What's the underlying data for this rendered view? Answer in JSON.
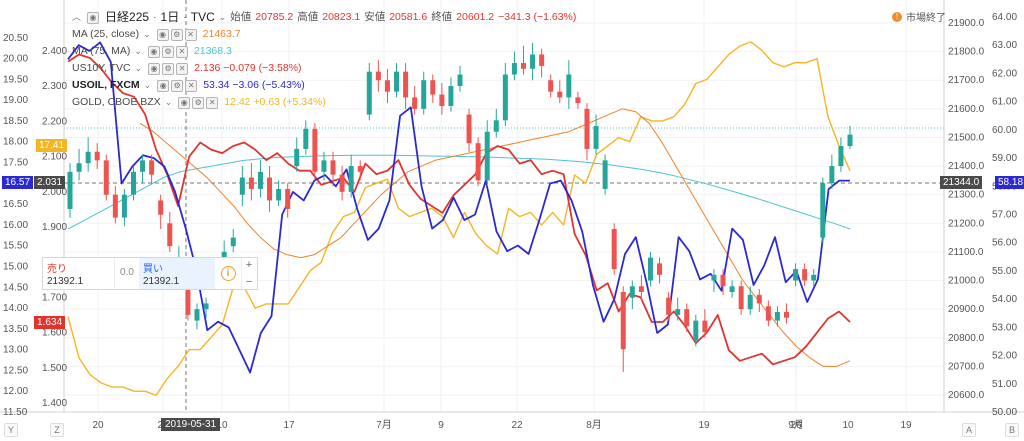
{
  "symbol": {
    "name": "日経225",
    "interval": "1日",
    "source": "TVC",
    "labels": {
      "open": "始値",
      "high": "高値",
      "low": "安値",
      "close": "終値"
    },
    "open": "20785.2",
    "high": "20823.1",
    "low": "20581.6",
    "close": "20601.2",
    "change": "−341.3 (−1.63%)"
  },
  "studies": [
    {
      "name": "MA (25, close)",
      "value": "21463.7",
      "color": "#f0822a"
    },
    {
      "name": "MA (75, MA)",
      "value": "21368.3",
      "color": "#4ec3d4"
    },
    {
      "name": "US10Y, TVC",
      "value": "2.136  −0.079 (−3.58%)",
      "color": "#e0342e"
    },
    {
      "name": "USOIL, FXCM",
      "value": "53.34  −3.06 (−5.43%)",
      "color": "#2a2ad0"
    },
    {
      "name": "GOLD, CBOE BZX",
      "value": "12.42  +0.63 (+5.34%)",
      "color": "#f4b522"
    }
  ],
  "market_status": "市場終了",
  "trade": {
    "sell_label": "売り",
    "sell_price": "21392.1",
    "spread": "0.0",
    "buy_label": "買い",
    "buy_price": "21392.1",
    "plus": "+",
    "minus": "−",
    "info": "i"
  },
  "left_axis_outer": [
    "20.50",
    "20.00",
    "19.50",
    "19.00",
    "18.50",
    "18.00",
    "17.50",
    "17.00",
    "16.50",
    "16.00",
    "15.50",
    "15.00",
    "14.50",
    "14.00",
    "13.50",
    "13.00",
    "12.50",
    "12.00",
    "11.50"
  ],
  "left_axis_inner": [
    "2.400",
    "2.300",
    "2.200",
    "2.100",
    "2.000",
    "1.900",
    "1.800",
    "1.700",
    "1.600",
    "1.500",
    "1.400"
  ],
  "right_axis_price": [
    "21900.0",
    "21800.0",
    "21700.0",
    "21600.0",
    "21500.0",
    "21400.0",
    "21300.0",
    "21200.0",
    "21100.0",
    "21000.0",
    "20900.0",
    "20800.0",
    "20700.0",
    "20600.0"
  ],
  "right_axis_outer": [
    "64.00",
    "63.00",
    "62.00",
    "61.00",
    "60.00",
    "59.00",
    "58.00",
    "57.00",
    "56.00",
    "55.00",
    "54.00",
    "53.00",
    "52.00",
    "51.00",
    "50.00"
  ],
  "x_axis": [
    "20",
    "27",
    "2019-05-31",
    "10",
    "17",
    "7月",
    "9",
    "22",
    "8月",
    "19",
    "26",
    "9月",
    "10",
    "19"
  ],
  "price_tags": {
    "gold_left": "17.41",
    "oil_left": "16.57",
    "us10y_left_inner": "2.031",
    "us10y_left": "1.634",
    "price_right": "21344.0",
    "oil_right": "58.18"
  },
  "corner_labels": {
    "y": "Y",
    "z": "Z",
    "a": "A",
    "b": "B"
  },
  "chart_data": {
    "type": "line",
    "candles": [
      {
        "o": 21250,
        "c": 21380,
        "h": 21410,
        "l": 21220
      },
      {
        "o": 21380,
        "c": 21410,
        "h": 21460,
        "l": 21350
      },
      {
        "o": 21410,
        "c": 21450,
        "h": 21500,
        "l": 21380
      },
      {
        "o": 21450,
        "c": 21420,
        "h": 21480,
        "l": 21390
      },
      {
        "o": 21420,
        "c": 21300,
        "h": 21440,
        "l": 21280
      },
      {
        "o": 21300,
        "c": 21220,
        "h": 21330,
        "l": 21200
      },
      {
        "o": 21220,
        "c": 21300,
        "h": 21320,
        "l": 21190
      },
      {
        "o": 21300,
        "c": 21380,
        "h": 21400,
        "l": 21280
      },
      {
        "o": 21380,
        "c": 21420,
        "h": 21440,
        "l": 21340
      },
      {
        "o": 21420,
        "c": 21370,
        "h": 21440,
        "l": 21340
      },
      {
        "o": 21280,
        "c": 21230,
        "h": 21300,
        "l": 21180
      },
      {
        "o": 21200,
        "c": 21120,
        "h": 21240,
        "l": 21100
      },
      {
        "o": 21060,
        "c": 21080,
        "h": 21120,
        "l": 21000
      },
      {
        "o": 20990,
        "c": 20880,
        "h": 21010,
        "l": 20860
      },
      {
        "o": 20860,
        "c": 20900,
        "h": 20920,
        "l": 20830
      },
      {
        "o": 20900,
        "c": 20920,
        "h": 20940,
        "l": 20870
      },
      {
        "o": 21040,
        "c": 21060,
        "h": 21080,
        "l": 21020
      },
      {
        "o": 21040,
        "c": 21100,
        "h": 21140,
        "l": 21020
      },
      {
        "o": 21120,
        "c": 21150,
        "h": 21180,
        "l": 21100
      },
      {
        "o": 21300,
        "c": 21360,
        "h": 21400,
        "l": 21260
      },
      {
        "o": 21360,
        "c": 21320,
        "h": 21410,
        "l": 21280
      },
      {
        "o": 21320,
        "c": 21380,
        "h": 21420,
        "l": 21290
      },
      {
        "o": 21360,
        "c": 21280,
        "h": 21400,
        "l": 21240
      },
      {
        "o": 21280,
        "c": 21320,
        "h": 21350,
        "l": 21260
      },
      {
        "o": 21320,
        "c": 21250,
        "h": 21340,
        "l": 21220
      },
      {
        "o": 21400,
        "c": 21460,
        "h": 21500,
        "l": 21380
      },
      {
        "o": 21460,
        "c": 21530,
        "h": 21560,
        "l": 21440
      },
      {
        "o": 21530,
        "c": 21380,
        "h": 21550,
        "l": 21350
      },
      {
        "o": 21380,
        "c": 21420,
        "h": 21450,
        "l": 21350
      },
      {
        "o": 21420,
        "c": 21370,
        "h": 21450,
        "l": 21330
      },
      {
        "o": 21370,
        "c": 21310,
        "h": 21400,
        "l": 21280
      },
      {
        "o": 21310,
        "c": 21400,
        "h": 21440,
        "l": 21290
      },
      {
        "o": 21400,
        "c": 21380,
        "h": 21420,
        "l": 21350
      },
      {
        "o": 21580,
        "c": 21730,
        "h": 21760,
        "l": 21560
      },
      {
        "o": 21730,
        "c": 21700,
        "h": 21770,
        "l": 21660
      },
      {
        "o": 21700,
        "c": 21660,
        "h": 21740,
        "l": 21620
      },
      {
        "o": 21660,
        "c": 21730,
        "h": 21760,
        "l": 21640
      },
      {
        "o": 21730,
        "c": 21640,
        "h": 21760,
        "l": 21600
      },
      {
        "o": 21640,
        "c": 21600,
        "h": 21680,
        "l": 21580
      },
      {
        "o": 21600,
        "c": 21700,
        "h": 21730,
        "l": 21580
      },
      {
        "o": 21700,
        "c": 21650,
        "h": 21720,
        "l": 21620
      },
      {
        "o": 21650,
        "c": 21610,
        "h": 21690,
        "l": 21580
      },
      {
        "o": 21610,
        "c": 21680,
        "h": 21710,
        "l": 21590
      },
      {
        "o": 21680,
        "c": 21720,
        "h": 21750,
        "l": 21660
      },
      {
        "o": 21580,
        "c": 21480,
        "h": 21600,
        "l": 21450
      },
      {
        "o": 21480,
        "c": 21350,
        "h": 21500,
        "l": 21330
      },
      {
        "o": 21350,
        "c": 21520,
        "h": 21560,
        "l": 21330
      },
      {
        "o": 21520,
        "c": 21560,
        "h": 21600,
        "l": 21500
      },
      {
        "o": 21560,
        "c": 21720,
        "h": 21760,
        "l": 21540
      },
      {
        "o": 21720,
        "c": 21760,
        "h": 21800,
        "l": 21700
      },
      {
        "o": 21760,
        "c": 21740,
        "h": 21820,
        "l": 21720
      },
      {
        "o": 21740,
        "c": 21790,
        "h": 21830,
        "l": 21700
      },
      {
        "o": 21790,
        "c": 21750,
        "h": 21810,
        "l": 21710
      },
      {
        "o": 21700,
        "c": 21660,
        "h": 21720,
        "l": 21640
      },
      {
        "o": 21660,
        "c": 21640,
        "h": 21700,
        "l": 21620
      },
      {
        "o": 21640,
        "c": 21720,
        "h": 21770,
        "l": 21600
      },
      {
        "o": 21640,
        "c": 21620,
        "h": 21660,
        "l": 21600
      },
      {
        "o": 21600,
        "c": 21460,
        "h": 21620,
        "l": 21420
      },
      {
        "o": 21460,
        "c": 21540,
        "h": 21580,
        "l": 21440
      },
      {
        "o": 21320,
        "c": 21420,
        "h": 21440,
        "l": 21300
      },
      {
        "o": 21180,
        "c": 21040,
        "h": 21200,
        "l": 21020
      },
      {
        "o": 20960,
        "c": 20760,
        "h": 20980,
        "l": 20680
      },
      {
        "o": 20940,
        "c": 20980,
        "h": 21000,
        "l": 20900
      },
      {
        "o": 20980,
        "c": 20960,
        "h": 21020,
        "l": 20930
      },
      {
        "o": 21000,
        "c": 21080,
        "h": 21100,
        "l": 20980
      },
      {
        "o": 21060,
        "c": 21020,
        "h": 21080,
        "l": 20990
      },
      {
        "o": 20940,
        "c": 20880,
        "h": 20960,
        "l": 20860
      },
      {
        "o": 20880,
        "c": 20900,
        "h": 20940,
        "l": 20860
      },
      {
        "o": 20900,
        "c": 20840,
        "h": 20920,
        "l": 20820
      },
      {
        "o": 20790,
        "c": 20860,
        "h": 20880,
        "l": 20770
      },
      {
        "o": 20860,
        "c": 20820,
        "h": 20900,
        "l": 20800
      },
      {
        "o": 21000,
        "c": 21020,
        "h": 21040,
        "l": 20960
      },
      {
        "o": 21020,
        "c": 20980,
        "h": 21040,
        "l": 20950
      },
      {
        "o": 20960,
        "c": 20980,
        "h": 21000,
        "l": 20940
      },
      {
        "o": 20980,
        "c": 20900,
        "h": 21000,
        "l": 20880
      },
      {
        "o": 20900,
        "c": 20950,
        "h": 20980,
        "l": 20880
      },
      {
        "o": 20950,
        "c": 20920,
        "h": 20970,
        "l": 20890
      },
      {
        "o": 20910,
        "c": 20860,
        "h": 20930,
        "l": 20840
      },
      {
        "o": 20860,
        "c": 20890,
        "h": 20910,
        "l": 20840
      },
      {
        "o": 20890,
        "c": 20870,
        "h": 20920,
        "l": 20850
      },
      {
        "o": 21000,
        "c": 21040,
        "h": 21060,
        "l": 20980
      },
      {
        "o": 21040,
        "c": 21000,
        "h": 21060,
        "l": 20980
      },
      {
        "o": 21000,
        "c": 21020,
        "h": 21040,
        "l": 20980
      },
      {
        "o": 21150,
        "c": 21340,
        "h": 21360,
        "l": 21130
      },
      {
        "o": 21340,
        "c": 21400,
        "h": 21440,
        "l": 21320
      },
      {
        "o": 21400,
        "c": 21470,
        "h": 21500,
        "l": 21380
      },
      {
        "o": 21470,
        "c": 21510,
        "h": 21540,
        "l": 21460
      }
    ],
    "ma25": [
      21550,
      21520,
      21480,
      21440,
      21400,
      21360,
      21310,
      21260,
      21200,
      21150,
      21110,
      21090,
      21080,
      21090,
      21120,
      21150,
      21200,
      21250,
      21300,
      21340,
      21380,
      21400,
      21420,
      21430,
      21440,
      21450,
      21460,
      21470,
      21480,
      21490,
      21500,
      21510,
      21520,
      21540,
      21560,
      21580,
      21600,
      21590,
      21550,
      21480,
      21400,
      21320,
      21240,
      21160,
      21080,
      21000,
      20940,
      20880,
      20820,
      20770,
      20730,
      20700,
      20700,
      20720
    ],
    "ma75": [
      21180,
      21210,
      21240,
      21270,
      21300,
      21330,
      21360,
      21380,
      21390,
      21400,
      21410,
      21420,
      21425,
      21430,
      21432,
      21434,
      21436,
      21437,
      21438,
      21438,
      21438,
      21437,
      21436,
      21435,
      21434,
      21433,
      21432,
      21430,
      21428,
      21426,
      21424,
      21420,
      21416,
      21410,
      21404,
      21396,
      21388,
      21378,
      21366,
      21352,
      21338,
      21322,
      21306,
      21290,
      21272,
      21254,
      21236,
      21218,
      21200,
      21180
    ],
    "us10y": [
      2.37,
      2.39,
      2.38,
      2.35,
      2.31,
      2.28,
      2.27,
      2.22,
      2.12,
      2.05,
      1.96,
      2.1,
      2.14,
      2.12,
      2.11,
      2.13,
      2.14,
      2.12,
      2.09,
      2.11,
      2.08,
      2.06,
      2.06,
      2.02,
      2.03,
      2.04,
      2.0,
      2.08,
      2.05,
      2.06,
      2.09,
      2.02,
      1.98,
      1.96,
      1.94,
      1.99,
      2.02,
      2.05,
      2.11,
      2.13,
      2.12,
      2.08,
      2.09,
      2.05,
      2.06,
      2.05,
      1.88,
      1.82,
      1.72,
      1.74,
      1.66,
      1.71,
      1.7,
      1.63,
      1.63,
      1.66,
      1.62,
      1.57,
      1.6,
      1.65,
      1.55,
      1.52,
      1.53,
      1.54,
      1.51,
      1.52,
      1.53,
      1.56,
      1.6,
      1.64,
      1.66,
      1.63
    ],
    "usoil": [
      62.5,
      63.0,
      62.8,
      63.1,
      62.4,
      58.1,
      58.7,
      59.1,
      59.0,
      58.7,
      57.8,
      56.5,
      55.0,
      52.9,
      53.2,
      53.0,
      52.2,
      51.4,
      52.8,
      53.4,
      57.0,
      57.8,
      57.5,
      58.2,
      58.4,
      58.0,
      58.6,
      57.2,
      56.1,
      56.5,
      57.5,
      60.5,
      60.8,
      58.0,
      56.5,
      56.8,
      57.6,
      56.8,
      57.0,
      58.2,
      56.4,
      55.7,
      55.9,
      55.6,
      56.8,
      58.1,
      58.2,
      57.5,
      56.4,
      54.5,
      53.2,
      54.0,
      55.6,
      56.2,
      54.6,
      52.8,
      53.1,
      56.2,
      55.7,
      54.7,
      54.9,
      54.3,
      56.5,
      56.1,
      54.5,
      55.2,
      56.2,
      54.6,
      55.0,
      53.9,
      54.7,
      57.9,
      58.2,
      58.2
    ],
    "gold": [
      13.8,
      12.8,
      12.4,
      12.2,
      12.1,
      12.1,
      12.0,
      12.0,
      11.9,
      12.3,
      12.6,
      13.0,
      13.0,
      13.3,
      13.6,
      14.5,
      14.5,
      14.0,
      14.1,
      14.1,
      14.1,
      14.5,
      14.9,
      15.1,
      15.8,
      16.2,
      16.3,
      16.9,
      17.0,
      17.1,
      16.4,
      16.2,
      16.3,
      16.4,
      16.2,
      15.7,
      16.3,
      15.8,
      15.5,
      15.3,
      16.4,
      16.2,
      16.3,
      16.0,
      16.3,
      16.0,
      17.2,
      17.0,
      17.7,
      17.9,
      18.1,
      18.0,
      18.6,
      18.5,
      18.5,
      18.6,
      18.9,
      19.4,
      19.5,
      19.8,
      20.1,
      20.3,
      20.4,
      20.2,
      19.9,
      19.8,
      19.9,
      19.9,
      20.0,
      18.6,
      17.9,
      17.3
    ]
  }
}
